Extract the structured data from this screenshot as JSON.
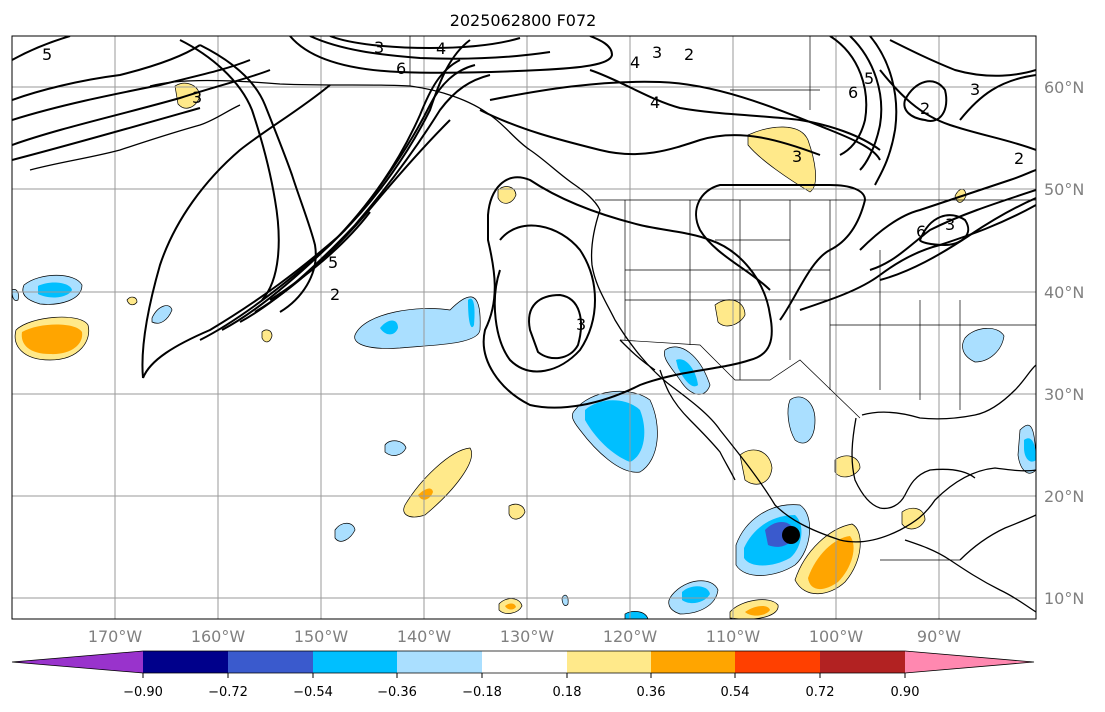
{
  "title": "2025062800 F072",
  "map": {
    "lon_labels": [
      "170°W",
      "160°W",
      "150°W",
      "140°W",
      "130°W",
      "120°W",
      "110°W",
      "100°W",
      "90°W"
    ],
    "lat_labels": [
      "60°N",
      "50°N",
      "40°N",
      "30°N",
      "20°N",
      "10°N"
    ],
    "contour_labels": [
      "5",
      "3",
      "4",
      "6",
      "3",
      "2",
      "4",
      "3",
      "6",
      "5",
      "2",
      "3",
      "3",
      "6",
      "5",
      "2",
      "3",
      "2",
      "3",
      "4"
    ],
    "storm_marker": {
      "lon": -103.5,
      "lat": 16.2,
      "color": "#000000"
    }
  },
  "colorbar": {
    "ticks": [
      "−0.90",
      "−0.72",
      "−0.54",
      "−0.36",
      "−0.18",
      "0.18",
      "0.36",
      "0.54",
      "0.72",
      "0.90"
    ],
    "colors": [
      "#9933cc",
      "#00008b",
      "#3a5acd",
      "#00bfff",
      "#aadfff",
      "#ffffff",
      "#ffe98a",
      "#ffa500",
      "#ff4000",
      "#b22222",
      "#ff88b0"
    ],
    "extend": "both"
  }
}
